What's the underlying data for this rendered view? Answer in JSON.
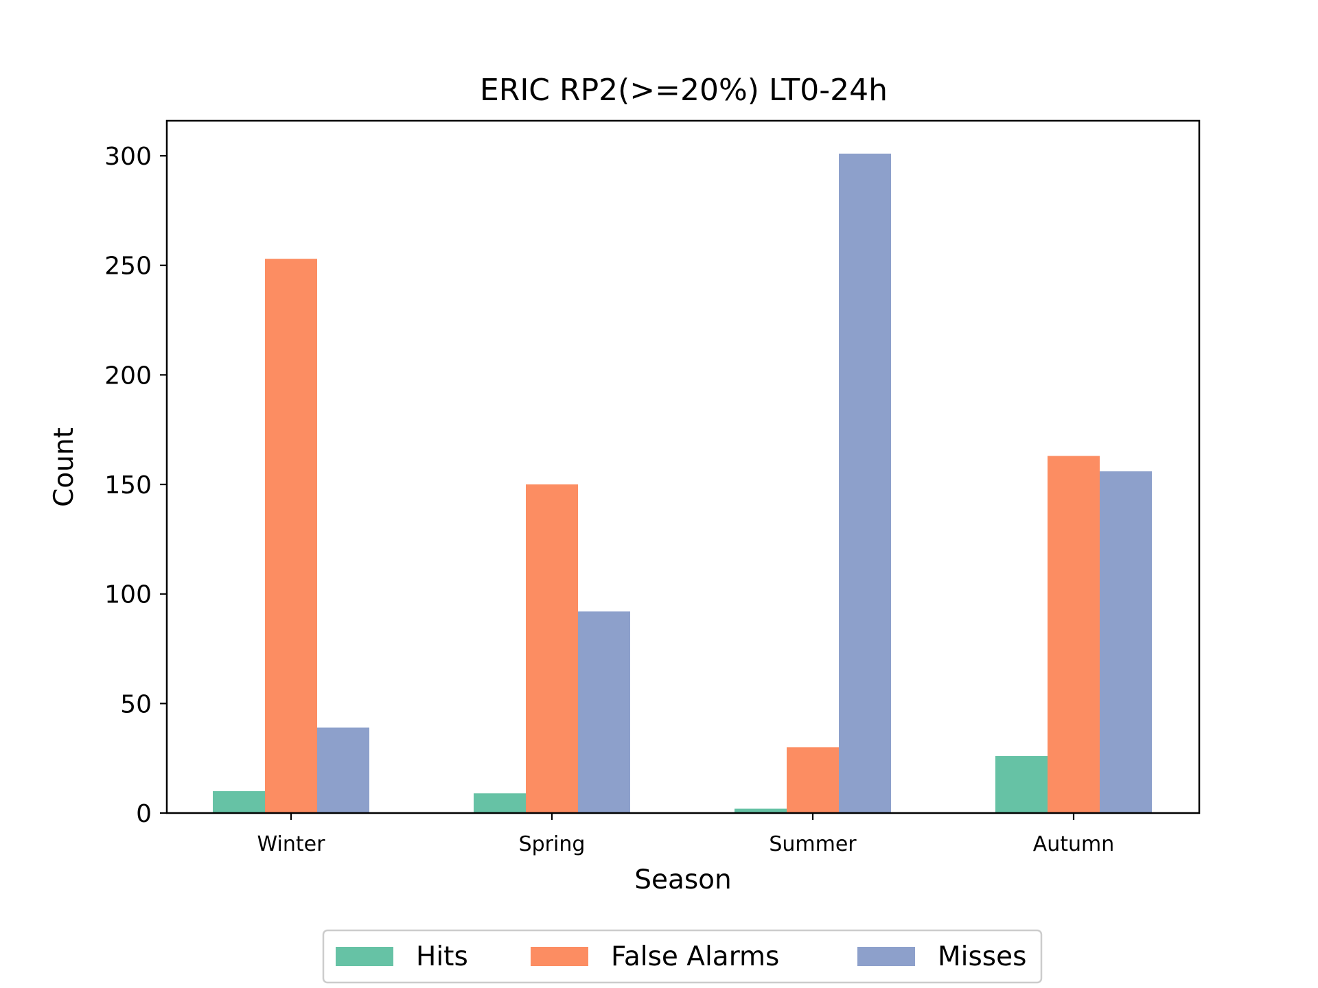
{
  "chart_data": {
    "type": "bar",
    "title": "ERIC RP2(>=20%) LT0-24h",
    "xlabel": "Season",
    "ylabel": "Count",
    "categories": [
      "Winter",
      "Spring",
      "Summer",
      "Autumn"
    ],
    "ylim": [
      0,
      316
    ],
    "yticks": [
      0,
      50,
      100,
      150,
      200,
      250,
      300
    ],
    "grid": false,
    "legend_position": "bottom-center",
    "series": [
      {
        "name": "Hits",
        "color": "#66c2a5",
        "values": [
          10,
          9,
          2,
          26
        ]
      },
      {
        "name": "False Alarms",
        "color": "#fc8d62",
        "values": [
          253,
          150,
          30,
          163
        ]
      },
      {
        "name": "Misses",
        "color": "#8da0cb",
        "values": [
          39,
          92,
          301,
          156
        ]
      }
    ]
  }
}
